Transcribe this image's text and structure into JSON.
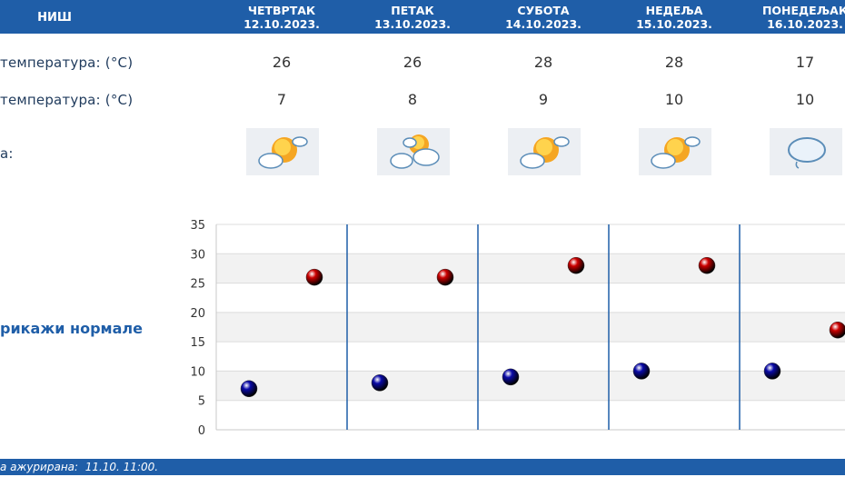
{
  "header": {
    "city": "НИШ",
    "days": [
      {
        "name": "ЧЕТВРТАК",
        "date": "12.10.2023."
      },
      {
        "name": "ПЕТАК",
        "date": "13.10.2023."
      },
      {
        "name": "СУБОТА",
        "date": "14.10.2023."
      },
      {
        "name": "НЕДЕЉА",
        "date": "15.10.2023."
      },
      {
        "name": "ПОНЕДЕЉАК",
        "date": "16.10.2023."
      }
    ]
  },
  "rows": {
    "max_label": "температура: (°C)",
    "min_label": "температура: (°C)",
    "weather_label": "а:",
    "max_values": [
      "26",
      "26",
      "28",
      "28",
      "17"
    ],
    "min_values": [
      "7",
      "8",
      "9",
      "10",
      "10"
    ]
  },
  "icons": [
    "partly-cloudy-sun-icon",
    "sun-behind-clouds-icon",
    "partly-cloudy-sun-icon",
    "partly-cloudy-sun-icon",
    "cloud-rain-icon"
  ],
  "normals_link": "рикажи нормале",
  "footer": {
    "text": "а ажурирана:  11.10. 11:00."
  },
  "colors": {
    "header_bg": "#1f5ea8",
    "max_dot": "#cc0000",
    "min_dot": "#0a0aa8"
  },
  "chart_data": {
    "type": "scatter",
    "ylim": [
      0,
      35
    ],
    "y_ticks": [
      0,
      5,
      10,
      15,
      20,
      25,
      30,
      35
    ],
    "categories": [
      "12.10.2023.",
      "13.10.2023.",
      "14.10.2023.",
      "15.10.2023.",
      "16.10.2023."
    ],
    "series": [
      {
        "values": [
          26,
          26,
          28,
          28,
          17
        ],
        "color": "#cc0000"
      },
      {
        "values": [
          7,
          8,
          9,
          10,
          10
        ],
        "color": "#0a0aa8"
      }
    ]
  }
}
